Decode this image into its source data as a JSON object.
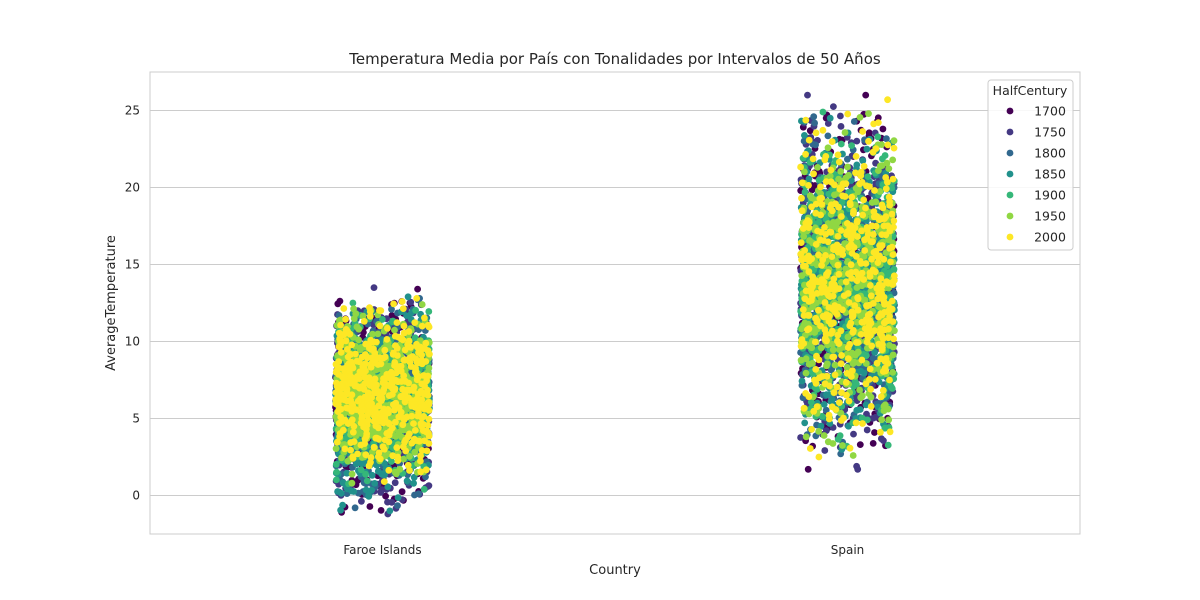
{
  "chart_data": {
    "type": "scatter",
    "title": "Temperatura Media por País con Tonalidades por Intervalos de 50 Años",
    "xlabel": "Country",
    "ylabel": "AverageTemperature",
    "categories": [
      "Faroe Islands",
      "Spain"
    ],
    "ylim": [
      -2.5,
      27.5
    ],
    "yticks": [
      0,
      5,
      10,
      15,
      20,
      25
    ],
    "grid": true,
    "grid_axis": "y",
    "legend": {
      "title": "HalfCentury",
      "placement": "top-right",
      "entries": [
        "1700",
        "1750",
        "1800",
        "1850",
        "1900",
        "1950",
        "2000"
      ]
    },
    "series": [
      {
        "name": "1700",
        "color": "#440154",
        "ranges": {
          "Faroe Islands": [
            -1.1,
            13.4
          ],
          "Spain": [
            1.7,
            26.0
          ]
        }
      },
      {
        "name": "1750",
        "color": "#443983",
        "ranges": {
          "Faroe Islands": [
            -1.2,
            13.5
          ],
          "Spain": [
            1.7,
            26.0
          ]
        }
      },
      {
        "name": "1800",
        "color": "#31688e",
        "ranges": {
          "Faroe Islands": [
            -0.8,
            12.8
          ],
          "Spain": [
            2.7,
            24.6
          ]
        }
      },
      {
        "name": "1850",
        "color": "#21918c",
        "ranges": {
          "Faroe Islands": [
            -1.0,
            12.9
          ],
          "Spain": [
            3.0,
            24.5
          ]
        }
      },
      {
        "name": "1900",
        "color": "#35b779",
        "ranges": {
          "Faroe Islands": [
            0.4,
            12.5
          ],
          "Spain": [
            3.2,
            24.9
          ]
        }
      },
      {
        "name": "1950",
        "color": "#90d743",
        "ranges": {
          "Faroe Islands": [
            0.8,
            12.4
          ],
          "Spain": [
            2.6,
            24.8
          ]
        }
      },
      {
        "name": "2000",
        "color": "#fde725",
        "ranges": {
          "Faroe Islands": [
            0.9,
            12.8
          ],
          "Spain": [
            2.5,
            25.7
          ]
        }
      }
    ]
  }
}
